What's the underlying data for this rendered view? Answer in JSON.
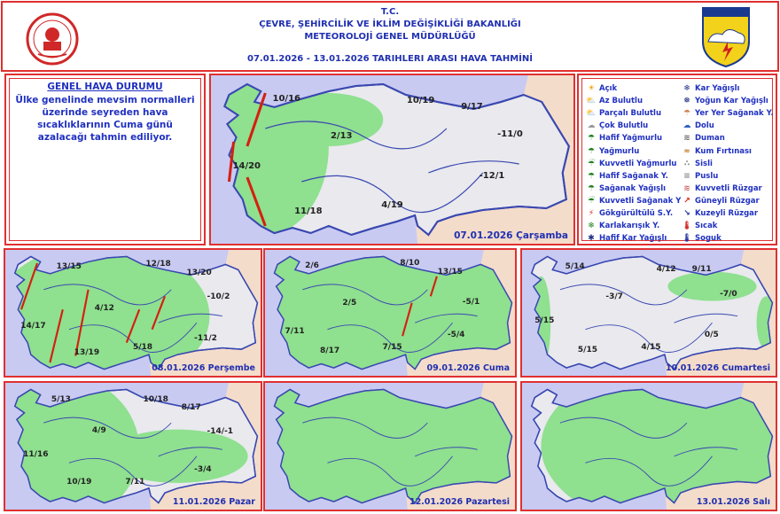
{
  "header": {
    "line1": "T.C.",
    "line2": "ÇEVRE, ŞEHİRCİLİK VE İKLİM DEĞİŞİKLİĞİ BAKANLIĞI",
    "line3": "METEOROLOJİ  GENEL  MÜDÜRLÜĞÜ",
    "line4": "07.01.2026  -  13.01.2026    TARIHLERI  ARASI  HAVA  TAHMİNİ",
    "met_logo_text": "METEOROLOJİ",
    "border_color": "#e03030",
    "text_color": "#2030b0"
  },
  "summary": {
    "title": "GENEL HAVA DURUMU",
    "text": "Ülke genelinde mevsim normalleri üzerinde seyreden hava sıcaklıklarının Cuma günü azalacağı tahmin ediliyor."
  },
  "legend": {
    "left": [
      {
        "label": "Açık",
        "icon": "sun-icon"
      },
      {
        "label": "Az Bulutlu",
        "icon": "sun-small-cloud-icon"
      },
      {
        "label": "Parçalı Bulutlu",
        "icon": "partly-cloudy-icon"
      },
      {
        "label": "Çok Bulutlu",
        "icon": "cloudy-icon"
      },
      {
        "label": "Hafif Yağmurlu",
        "icon": "light-rain-icon"
      },
      {
        "label": "Yağmurlu",
        "icon": "rain-icon"
      },
      {
        "label": "Kuvvetli Yağmurlu",
        "icon": "heavy-rain-icon"
      },
      {
        "label": "Hafif Sağanak Y.",
        "icon": "light-shower-icon"
      },
      {
        "label": "Sağanak Yağışlı",
        "icon": "shower-icon"
      },
      {
        "label": "Kuvvetli Sağanak Y",
        "icon": "heavy-shower-icon"
      },
      {
        "label": "Gökgürültülü S.Y.",
        "icon": "thunderstorm-icon"
      },
      {
        "label": "Karlakarışık Y.",
        "icon": "sleet-icon"
      },
      {
        "label": "Hafif Kar Yağışlı",
        "icon": "light-snow-icon"
      }
    ],
    "right": [
      {
        "label": "Kar Yağışlı",
        "icon": "snow-icon"
      },
      {
        "label": "Yoğun Kar Yağışlı",
        "icon": "heavy-snow-icon"
      },
      {
        "label": "Yer Yer Sağanak Y.",
        "icon": "scattered-shower-icon"
      },
      {
        "label": "Dolu",
        "icon": "hail-icon"
      },
      {
        "label": "Duman",
        "icon": "smoke-icon"
      },
      {
        "label": "Kum Fırtınası",
        "icon": "sandstorm-icon"
      },
      {
        "label": "Sisli",
        "icon": "fog-icon"
      },
      {
        "label": "Puslu",
        "icon": "haze-icon"
      },
      {
        "label": "Kuvvetli Rüzgar",
        "icon": "strong-wind-icon"
      },
      {
        "label": "Güneyli Rüzgar",
        "icon": "south-wind-arrow-icon"
      },
      {
        "label": "Kuzeyli Rüzgar",
        "icon": "north-wind-arrow-icon"
      },
      {
        "label": "Sıcak",
        "icon": "hot-thermometer-icon"
      },
      {
        "label": "Soguk",
        "icon": "cold-thermometer-icon"
      }
    ]
  },
  "colors": {
    "sea": "#c8caf2",
    "land_outside": "#f4dccb",
    "turkey_land": "#e9e9ee",
    "rain_area": "#8fe08f",
    "border": "#3a48b0",
    "wind_arrow": "#d42010"
  },
  "maps": [
    {
      "date": "07.01.2026 Çarşamba",
      "temps": [
        "10/16",
        "10/19",
        "9/17",
        "2/13",
        "-11/0",
        "14/20",
        "-12/1",
        "4/19",
        "11/18"
      ]
    },
    {
      "date": "08.01.2026 Perşembe",
      "temps": [
        "13/15",
        "12/18",
        "13/20",
        "-10/2",
        "4/12",
        "14/17",
        "13/19",
        "-11/2",
        "5/18"
      ]
    },
    {
      "date": "09.01.2026 Cuma",
      "temps": [
        "2/6",
        "8/10",
        "13/15",
        "2/5",
        "-5/1",
        "7/11",
        "-5/4",
        "7/15",
        "8/17"
      ]
    },
    {
      "date": "10.01.2026 Cumartesi",
      "temps": [
        "5/14",
        "4/12",
        "9/11",
        "-3/7",
        "-7/0",
        "5/15",
        "0/5",
        "4/15",
        "5/15"
      ]
    },
    {
      "date": "11.01.2026 Pazar",
      "temps": [
        "5/13",
        "10/18",
        "8/17",
        "4/9",
        "-14/-1",
        "11/16",
        "-3/4",
        "10/19",
        "7/11"
      ]
    },
    {
      "date": "12.01.2026 Pazartesi",
      "temps": []
    },
    {
      "date": "13.01.2026 Salı",
      "temps": []
    }
  ]
}
